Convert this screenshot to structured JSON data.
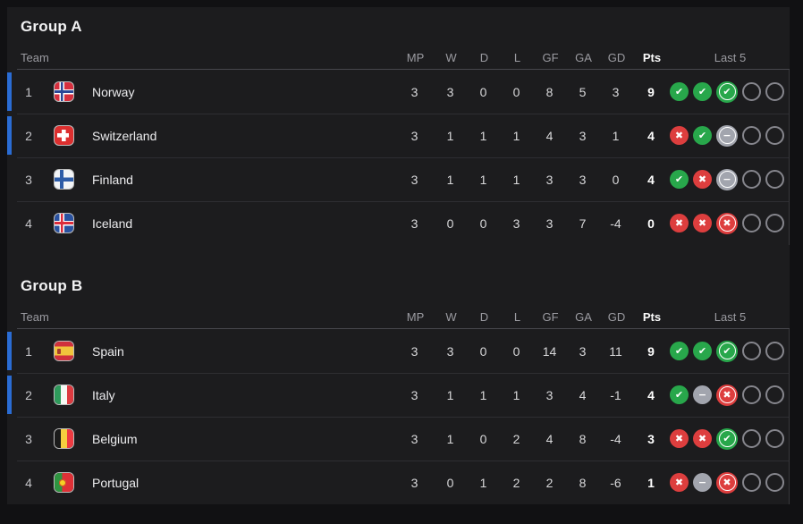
{
  "colors": {
    "accent-blue": "#2a6cd4",
    "win-green": "#28a74b",
    "loss-red": "#dd3e3e",
    "draw-grey": "#a2a5ae",
    "panel-bg": "#1c1c1e"
  },
  "icons": {
    "win": "✔",
    "loss": "✖",
    "draw": "−"
  },
  "headers": {
    "team": "Team",
    "mp": "MP",
    "w": "W",
    "d": "D",
    "l": "L",
    "gf": "GF",
    "ga": "GA",
    "gd": "GD",
    "pts": "Pts",
    "last5": "Last 5"
  },
  "groups": [
    {
      "title": "Group A",
      "rows": [
        {
          "rank": "1",
          "team": "Norway",
          "flag": "norway",
          "qualified": true,
          "mp": "3",
          "w": "3",
          "d": "0",
          "l": "0",
          "gf": "8",
          "ga": "5",
          "gd": "3",
          "pts": "9",
          "last5": [
            "win",
            "win",
            "win-recent",
            "none",
            "none"
          ]
        },
        {
          "rank": "2",
          "team": "Switzerland",
          "flag": "switzerland",
          "qualified": true,
          "mp": "3",
          "w": "1",
          "d": "1",
          "l": "1",
          "gf": "4",
          "ga": "3",
          "gd": "1",
          "pts": "4",
          "last5": [
            "loss",
            "win",
            "draw-recent",
            "none",
            "none"
          ]
        },
        {
          "rank": "3",
          "team": "Finland",
          "flag": "finland",
          "qualified": false,
          "mp": "3",
          "w": "1",
          "d": "1",
          "l": "1",
          "gf": "3",
          "ga": "3",
          "gd": "0",
          "pts": "4",
          "last5": [
            "win",
            "loss",
            "draw-recent",
            "none",
            "none"
          ]
        },
        {
          "rank": "4",
          "team": "Iceland",
          "flag": "iceland",
          "qualified": false,
          "mp": "3",
          "w": "0",
          "d": "0",
          "l": "3",
          "gf": "3",
          "ga": "7",
          "gd": "-4",
          "pts": "0",
          "last5": [
            "loss",
            "loss",
            "loss-recent",
            "none",
            "none"
          ]
        }
      ]
    },
    {
      "title": "Group B",
      "rows": [
        {
          "rank": "1",
          "team": "Spain",
          "flag": "spain",
          "qualified": true,
          "mp": "3",
          "w": "3",
          "d": "0",
          "l": "0",
          "gf": "14",
          "ga": "3",
          "gd": "11",
          "pts": "9",
          "last5": [
            "win",
            "win",
            "win-recent",
            "none",
            "none"
          ]
        },
        {
          "rank": "2",
          "team": "Italy",
          "flag": "italy",
          "qualified": true,
          "mp": "3",
          "w": "1",
          "d": "1",
          "l": "1",
          "gf": "3",
          "ga": "4",
          "gd": "-1",
          "pts": "4",
          "last5": [
            "win",
            "draw",
            "loss-recent",
            "none",
            "none"
          ]
        },
        {
          "rank": "3",
          "team": "Belgium",
          "flag": "belgium",
          "qualified": false,
          "mp": "3",
          "w": "1",
          "d": "0",
          "l": "2",
          "gf": "4",
          "ga": "8",
          "gd": "-4",
          "pts": "3",
          "last5": [
            "loss",
            "loss",
            "win-recent",
            "none",
            "none"
          ]
        },
        {
          "rank": "4",
          "team": "Portugal",
          "flag": "portugal",
          "qualified": false,
          "mp": "3",
          "w": "0",
          "d": "1",
          "l": "2",
          "gf": "2",
          "ga": "8",
          "gd": "-6",
          "pts": "1",
          "last5": [
            "loss",
            "draw",
            "loss-recent",
            "none",
            "none"
          ]
        }
      ]
    }
  ]
}
